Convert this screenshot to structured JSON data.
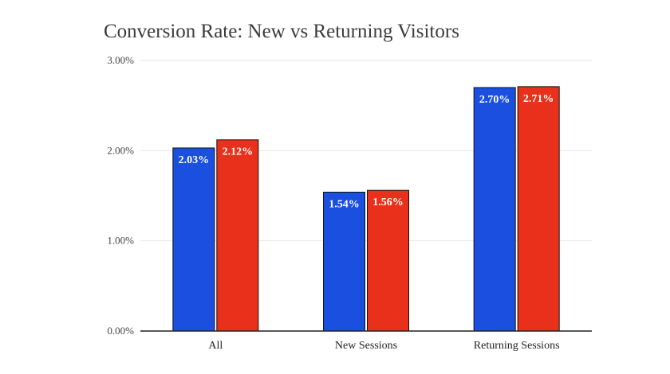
{
  "chart_data": {
    "type": "bar",
    "title": "Conversion Rate: New vs Returning Visitors",
    "categories": [
      "All",
      "New Sessions",
      "Returning Sessions"
    ],
    "series": [
      {
        "values": [
          2.03,
          1.54,
          2.7
        ],
        "labels": [
          "2.03%",
          "1.54%",
          "2.70%"
        ],
        "color": "#1a4fe0"
      },
      {
        "values": [
          2.12,
          1.56,
          2.71
        ],
        "labels": [
          "2.12%",
          "1.56%",
          "2.71%"
        ],
        "color": "#e8301a"
      }
    ],
    "ylim": [
      0,
      3
    ],
    "yticks": [
      0,
      1,
      2,
      3
    ],
    "ytick_labels": [
      "0.00%",
      "1.00%",
      "2.00%",
      "3.00%"
    ],
    "xlabel": "",
    "ylabel": "",
    "grid": true,
    "legend": "none"
  }
}
